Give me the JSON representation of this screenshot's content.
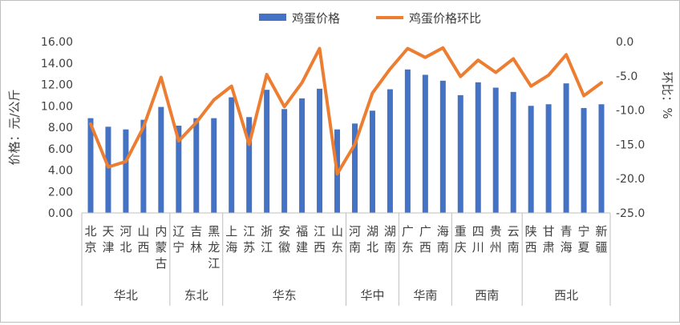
{
  "chart_data": {
    "type": "bar+line",
    "legend": {
      "position": "top",
      "bar_label": "鸡蛋价格",
      "line_label": "鸡蛋价格环比"
    },
    "ylabel": "价格：元/公斤",
    "y2label": "环比：%",
    "ylim": [
      0,
      16
    ],
    "y2lim": [
      -25,
      0
    ],
    "yticks": [
      "0.00",
      "2.00",
      "4.00",
      "6.00",
      "8.00",
      "10.00",
      "12.00",
      "14.00",
      "16.00"
    ],
    "y2ticks": [
      "0.0",
      "-5.0",
      "-10.0",
      "-15.0",
      "-20.0",
      "-25.0"
    ],
    "grid": false,
    "categories": [
      {
        "name": "北京",
        "price": 8.85,
        "mom": -12.0
      },
      {
        "name": "天津",
        "price": 8.05,
        "mom": -18.3
      },
      {
        "name": "河北",
        "price": 7.8,
        "mom": -17.5
      },
      {
        "name": "山西",
        "price": 8.7,
        "mom": -12.5
      },
      {
        "name": "内蒙古",
        "price": 9.9,
        "mom": -5.2
      },
      {
        "name": "辽宁",
        "price": 8.15,
        "mom": -14.5
      },
      {
        "name": "吉林",
        "price": 8.85,
        "mom": -11.8
      },
      {
        "name": "黑龙江",
        "price": 8.85,
        "mom": -8.5
      },
      {
        "name": "上海",
        "price": 10.8,
        "mom": -6.5
      },
      {
        "name": "江苏",
        "price": 8.95,
        "mom": -15.0
      },
      {
        "name": "浙江",
        "price": 11.5,
        "mom": -4.8
      },
      {
        "name": "安徽",
        "price": 9.7,
        "mom": -9.5
      },
      {
        "name": "福建",
        "price": 10.7,
        "mom": -6.0
      },
      {
        "name": "江西",
        "price": 11.6,
        "mom": -1.0
      },
      {
        "name": "山东",
        "price": 7.8,
        "mom": -19.3
      },
      {
        "name": "河南",
        "price": 8.35,
        "mom": -15.0
      },
      {
        "name": "湖北",
        "price": 9.55,
        "mom": -7.5
      },
      {
        "name": "湖南",
        "price": 11.55,
        "mom": -4.0
      },
      {
        "name": "广东",
        "price": 13.4,
        "mom": -1.0
      },
      {
        "name": "广西",
        "price": 12.9,
        "mom": -2.3
      },
      {
        "name": "海南",
        "price": 12.35,
        "mom": -0.9
      },
      {
        "name": "重庆",
        "price": 11.0,
        "mom": -5.1
      },
      {
        "name": "四川",
        "price": 12.2,
        "mom": -2.7
      },
      {
        "name": "贵州",
        "price": 11.7,
        "mom": -4.5
      },
      {
        "name": "云南",
        "price": 11.3,
        "mom": -2.5
      },
      {
        "name": "陕西",
        "price": 10.0,
        "mom": -6.5
      },
      {
        "name": "甘肃",
        "price": 10.15,
        "mom": -4.9
      },
      {
        "name": "青海",
        "price": 12.1,
        "mom": -1.9
      },
      {
        "name": "宁夏",
        "price": 9.8,
        "mom": -7.9
      },
      {
        "name": "新疆",
        "price": 10.15,
        "mom": -6.0
      }
    ],
    "groups": [
      {
        "name": "华北",
        "count": 5
      },
      {
        "name": "东北",
        "count": 3
      },
      {
        "name": "华东",
        "count": 7
      },
      {
        "name": "华中",
        "count": 3
      },
      {
        "name": "华南",
        "count": 3
      },
      {
        "name": "西南",
        "count": 4
      },
      {
        "name": "西北",
        "count": 5
      }
    ],
    "colors": {
      "bar": "#4472c4",
      "line": "#ed7d31",
      "axis": "#bfbfbf",
      "text": "#404040"
    }
  }
}
